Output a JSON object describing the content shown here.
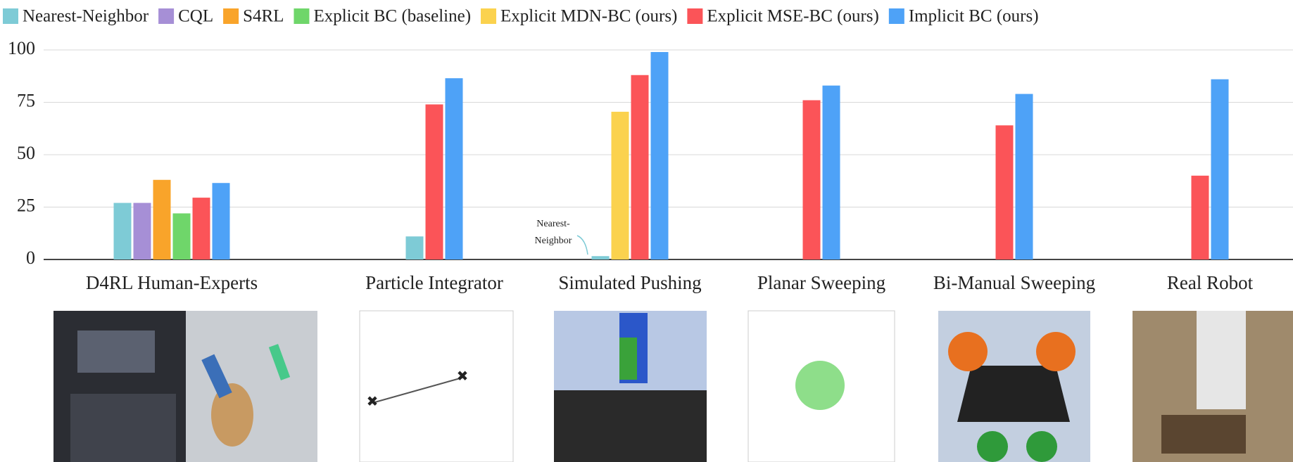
{
  "chart_data": {
    "type": "bar",
    "categories": [
      "D4RL Human-Experts",
      "Particle Integrator",
      "Simulated Pushing",
      "Planar Sweeping",
      "Bi-Manual Sweeping",
      "Real Robot"
    ],
    "series": [
      {
        "name": "Nearest-Neighbor",
        "color": "#7ecbd6",
        "values": [
          27,
          11,
          1.6,
          null,
          null,
          null
        ]
      },
      {
        "name": "CQL",
        "color": "#a68fd6",
        "values": [
          27,
          null,
          null,
          null,
          null,
          null
        ]
      },
      {
        "name": "S4RL",
        "color": "#f9a42a",
        "values": [
          38,
          null,
          null,
          null,
          null,
          null
        ]
      },
      {
        "name": "Explicit BC (baseline)",
        "color": "#6fd66a",
        "values": [
          22,
          null,
          null,
          null,
          null,
          null
        ]
      },
      {
        "name": "Explicit MDN-BC (ours)",
        "color": "#fbd24e",
        "values": [
          null,
          null,
          70.5,
          null,
          null,
          null
        ]
      },
      {
        "name": "Explicit MSE-BC (ours)",
        "color": "#fb5458",
        "values": [
          29.5,
          74,
          88,
          76,
          64,
          40
        ]
      },
      {
        "name": "Implicit BC (ours)",
        "color": "#4ea2f7",
        "values": [
          36.5,
          86.5,
          99,
          83,
          79,
          86
        ]
      }
    ],
    "ylim": [
      0,
      100
    ],
    "yticks": [
      0,
      25,
      50,
      75,
      100
    ],
    "grid": true,
    "annotation": {
      "lines": [
        "Nearest-",
        "Neighbor"
      ]
    }
  }
}
